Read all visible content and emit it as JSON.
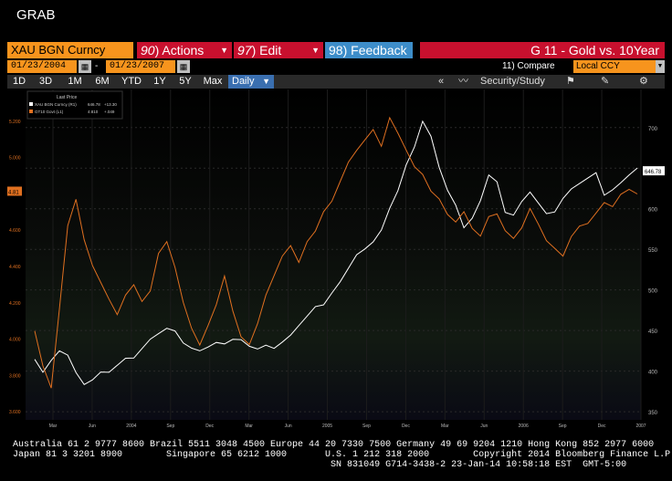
{
  "window": {
    "title": "GRAB"
  },
  "toolbar": {
    "ticker": "XAU BGN Curncy",
    "actions": {
      "num": "90",
      "label": "Actions"
    },
    "edit": {
      "num": "97",
      "label": "Edit"
    },
    "feedback": {
      "num": "98",
      "label": "Feedback"
    },
    "chart_name": "G 11 - Gold vs. 10Year"
  },
  "dates": {
    "start": "01/23/2004",
    "end": "01/23/2007",
    "compare": "11) Compare",
    "currency": "Local CCY"
  },
  "periods": [
    "1D",
    "3D",
    "1M",
    "6M",
    "YTD",
    "1Y",
    "5Y",
    "Max"
  ],
  "frequency": "Daily",
  "tools": {
    "security_study": "Security/Study"
  },
  "legend": {
    "header": "Last Price",
    "items": [
      {
        "label": "XAU BGN Curncy  (R1)",
        "value": "646.78",
        "change": "+13.30",
        "color": "#ffffff"
      },
      {
        "label": "GT10 Govt  (L1)",
        "value": "4.810",
        "change": "+.049",
        "color": "#e07020"
      }
    ]
  },
  "chart_data": {
    "type": "line",
    "x_ticks": [
      "Mar",
      "Jun",
      "2004",
      "Sep",
      "Dec",
      "Mar",
      "Jun",
      "2005",
      "Sep",
      "Dec",
      "Mar",
      "Jun",
      "2006",
      "Sep",
      "Dec",
      "2007"
    ],
    "y_left_ticks": [
      "5.200",
      "5.000",
      "4.800",
      "4.600",
      "4.400",
      "4.200",
      "4.000",
      "3.800",
      "3.600"
    ],
    "y_right_ticks": [
      "700",
      "650",
      "600",
      "550",
      "500",
      "450",
      "400",
      "350"
    ],
    "y_left_range": [
      3.55,
      5.25
    ],
    "y_right_range": [
      340,
      720
    ],
    "right_last_label": "646.78",
    "left_last_label": "4.81",
    "series": [
      {
        "name": "XAU BGN Curncy",
        "axis": "right",
        "color": "#ffffff",
        "values": [
          410,
          402,
          415,
          425,
          418,
          395,
          388,
          392,
          400,
          398,
          405,
          412,
          420,
          430,
          440,
          445,
          450,
          445,
          438,
          430,
          425,
          428,
          432,
          438,
          442,
          440,
          430,
          425,
          428,
          432,
          438,
          445,
          455,
          465,
          475,
          485,
          498,
          510,
          525,
          540,
          555,
          562,
          575,
          600,
          620,
          650,
          680,
          710,
          690,
          650,
          620,
          600,
          580,
          590,
          610,
          640,
          630,
          600,
          595,
          610,
          620,
          605,
          590,
          600,
          615,
          625,
          630,
          635,
          640,
          620,
          625,
          632,
          640,
          646.78
        ]
      },
      {
        "name": "GT10 Govt",
        "axis": "left",
        "color": "#e07020",
        "values": [
          4.05,
          3.85,
          3.72,
          4.15,
          4.6,
          4.78,
          4.55,
          4.4,
          4.3,
          4.2,
          4.15,
          4.25,
          4.3,
          4.2,
          4.25,
          4.45,
          4.55,
          4.4,
          4.2,
          4.05,
          3.95,
          4.05,
          4.2,
          4.35,
          4.15,
          4.0,
          3.95,
          4.1,
          4.25,
          4.35,
          4.45,
          4.5,
          4.4,
          4.55,
          4.6,
          4.7,
          4.75,
          4.85,
          4.95,
          5.05,
          5.1,
          5.15,
          5.05,
          5.2,
          5.15,
          5.05,
          4.95,
          4.9,
          4.8,
          4.75,
          4.7,
          4.65,
          4.7,
          4.6,
          4.55,
          4.65,
          4.7,
          4.6,
          4.55,
          4.6,
          4.7,
          4.65,
          4.55,
          4.5,
          4.45,
          4.55,
          4.6,
          4.65,
          4.7,
          4.75,
          4.72,
          4.78,
          4.8,
          4.81
        ]
      }
    ],
    "grid": true
  },
  "footer": {
    "line1": "Australia 61 2 9777 8600 Brazil 5511 3048 4500 Europe 44 20 7330 7500 Germany 49 69 9204 1210 Hong Kong 852 2977 6000",
    "line2": "Japan 81 3 3201 8900        Singapore 65 6212 1000       U.S. 1 212 318 2000        Copyright 2014 Bloomberg Finance L.P.",
    "line3": "                                                          SN 831049 G714-3438-2 23-Jan-14 10:58:18 EST  GMT-5:00"
  }
}
